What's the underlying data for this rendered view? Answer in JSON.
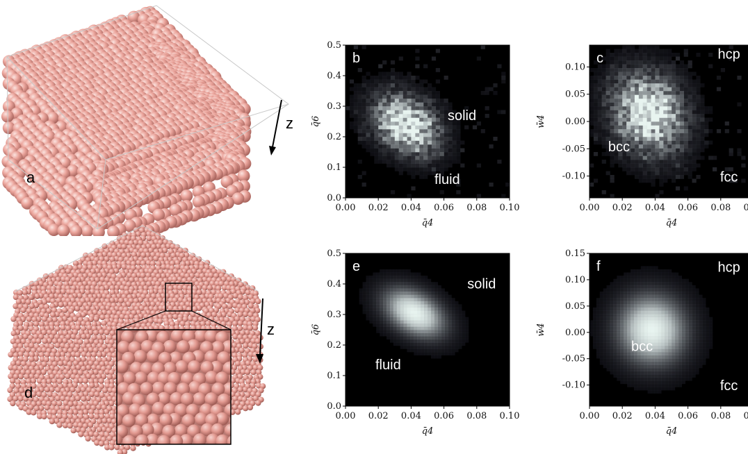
{
  "panels": {
    "a": {
      "letter": "a",
      "axis_label": "z"
    },
    "d": {
      "letter": "d",
      "axis_label": "z"
    }
  },
  "colors": {
    "sphere": "#e9a39b",
    "sphere_shadow": "#b8716a",
    "plot_bg": "#000000",
    "density_high": "#e8f4f0"
  },
  "chart_data": [
    {
      "id": "b",
      "type": "heatmap",
      "letter": "b",
      "xlabel": "q̄4",
      "ylabel": "q̄6",
      "xlim": [
        0.0,
        0.1
      ],
      "ylim": [
        0.0,
        0.5
      ],
      "xticks": [
        "0.00",
        "0.02",
        "0.04",
        "0.06",
        "0.08",
        "0.10"
      ],
      "yticks": [
        "0.0",
        "0.1",
        "0.2",
        "0.3",
        "0.4",
        "0.5"
      ],
      "annotations": [
        {
          "text": "solid",
          "x": 0.071,
          "y": 0.255
        },
        {
          "text": "fluid",
          "x": 0.062,
          "y": 0.045
        }
      ],
      "blobs": [
        {
          "cx": 0.037,
          "cy": 0.24,
          "sx": 0.011,
          "sy": 0.075,
          "rot": -45,
          "peak": 1.0
        }
      ],
      "noisy": true
    },
    {
      "id": "c",
      "type": "heatmap",
      "letter": "c",
      "xlabel": "q̄4",
      "ylabel": "w̄4",
      "xlim": [
        0.0,
        0.1
      ],
      "ylim": [
        -0.14,
        0.14
      ],
      "xticks": [
        "0.00",
        "0.02",
        "0.04",
        "0.06",
        "0.08",
        "0.10"
      ],
      "yticks": [
        "0.10",
        "0.05",
        "0.00",
        "-0.05",
        "-0.10"
      ],
      "ytick_values": [
        0.1,
        0.05,
        0.0,
        -0.05,
        -0.1
      ],
      "annotations": [
        {
          "text": "hcp",
          "x": 0.085,
          "y": 0.115
        },
        {
          "text": "bcc",
          "x": 0.018,
          "y": -0.055
        },
        {
          "text": "fcc",
          "x": 0.085,
          "y": -0.11
        }
      ],
      "blobs": [
        {
          "cx": 0.036,
          "cy": 0.015,
          "sx": 0.014,
          "sy": 0.05,
          "rot": -20,
          "peak": 1.0
        }
      ],
      "noisy": true
    },
    {
      "id": "e",
      "type": "heatmap",
      "letter": "e",
      "xlabel": "q̄4",
      "ylabel": "q̄6",
      "xlim": [
        0.0,
        0.1
      ],
      "ylim": [
        0.0,
        0.5
      ],
      "xticks": [
        "0.00",
        "0.02",
        "0.04",
        "0.06",
        "0.08",
        "0.10"
      ],
      "yticks": [
        "0.0",
        "0.1",
        "0.2",
        "0.3",
        "0.4",
        "0.5"
      ],
      "annotations": [
        {
          "text": "solid",
          "x": 0.083,
          "y": 0.385
        },
        {
          "text": "fluid",
          "x": 0.026,
          "y": 0.12
        }
      ],
      "blobs": [
        {
          "cx": 0.042,
          "cy": 0.305,
          "sx": 0.009,
          "sy": 0.07,
          "rot": -55,
          "peak": 1.0
        }
      ],
      "noisy": false
    },
    {
      "id": "f",
      "type": "heatmap",
      "letter": "f",
      "xlabel": "q̄4",
      "ylabel": "w̄4",
      "xlim": [
        0.0,
        0.1
      ],
      "ylim": [
        -0.14,
        0.15
      ],
      "xticks": [
        "0.00",
        "0.02",
        "0.04",
        "0.06",
        "0.08",
        "0.10"
      ],
      "yticks": [
        "0.15",
        "0.10",
        "0.05",
        "0.00",
        "-0.05",
        "-0.10"
      ],
      "ytick_values": [
        0.15,
        0.1,
        0.05,
        0.0,
        -0.05,
        -0.1
      ],
      "annotations": [
        {
          "text": "hcp",
          "x": 0.085,
          "y": 0.115
        },
        {
          "text": "bcc",
          "x": 0.032,
          "y": -0.035
        },
        {
          "text": "fcc",
          "x": 0.085,
          "y": -0.11
        }
      ],
      "blobs": [
        {
          "cx": 0.038,
          "cy": 0.005,
          "sx": 0.014,
          "sy": 0.045,
          "rot": -10,
          "peak": 1.0
        }
      ],
      "noisy": false
    }
  ]
}
